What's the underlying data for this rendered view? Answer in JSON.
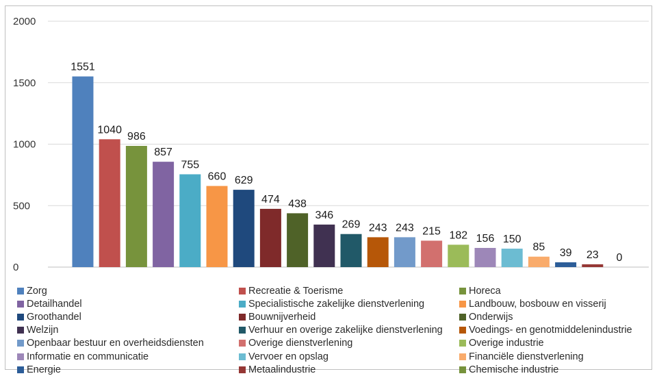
{
  "chart_data": {
    "type": "bar",
    "categories": [
      "Zorg",
      "Recreatie & Toerisme",
      "Horeca",
      "Detailhandel",
      "Specialistische zakelijke dienstverlening",
      "Landbouw, bosbouw en visserij",
      "Groothandel",
      "Bouwnijverheid",
      "Onderwijs",
      "Welzijn",
      "Verhuur en overige zakelijke dienstverlening",
      "Voedings- en genotmiddelenindustrie",
      "Openbaar bestuur en overheidsdiensten",
      "Overige dienstverlening",
      "Overige industrie",
      "Informatie en communicatie",
      "Vervoer en opslag",
      "Financiële dienstverlening",
      "Energie",
      "Metaalindustrie",
      "Chemische industrie"
    ],
    "values": [
      1551,
      1040,
      986,
      857,
      755,
      660,
      629,
      474,
      438,
      346,
      269,
      243,
      243,
      215,
      182,
      156,
      150,
      85,
      39,
      23,
      0
    ],
    "colors": [
      "#4f81bd",
      "#c0504d",
      "#77933c",
      "#8064a2",
      "#4bacc6",
      "#f79646",
      "#1f497d",
      "#7f2a2a",
      "#4f6228",
      "#403151",
      "#215968",
      "#b65708",
      "#729aca",
      "#d2706e",
      "#9bbb59",
      "#9d87b8",
      "#6cbcd2",
      "#f9ab6b",
      "#2c5d98",
      "#953735",
      "#76923c"
    ],
    "ylim": [
      0,
      2000
    ],
    "yticks": [
      "0",
      "500",
      "1000",
      "1500",
      "2000"
    ],
    "value_labels": [
      "1551",
      "1040",
      "986",
      "857",
      "755",
      "660",
      "629",
      "474",
      "438",
      "346",
      "269",
      "243",
      "243",
      "215",
      "182",
      "156",
      "150",
      "85",
      "39",
      "23",
      "0"
    ],
    "grid": true,
    "legend": "bottom"
  }
}
